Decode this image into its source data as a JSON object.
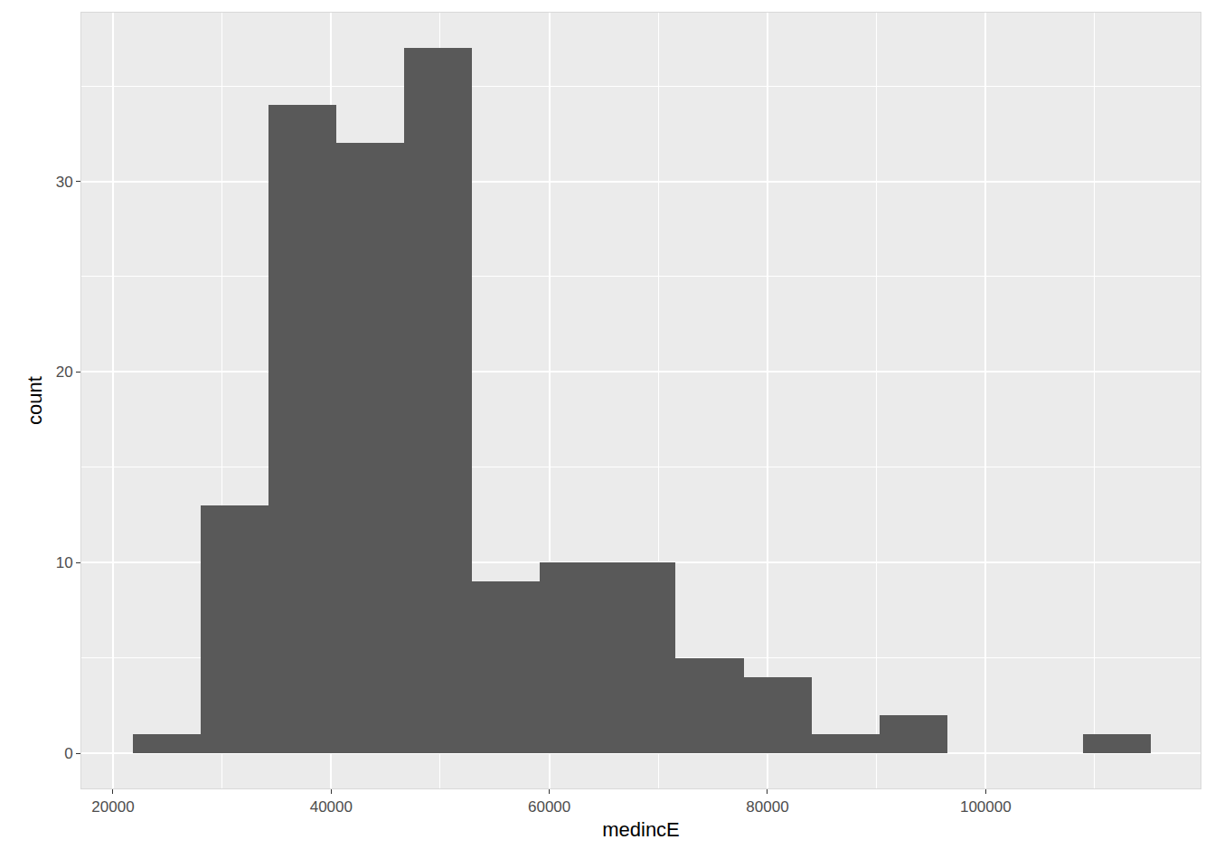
{
  "chart_data": {
    "type": "histogram",
    "x_label": "medincE",
    "y_label": "count",
    "bins": [
      21830,
      28050,
      34270,
      40490,
      46710,
      52930,
      59150,
      65370,
      71590,
      77810,
      84030,
      90250,
      96470,
      102690,
      108910,
      115130
    ],
    "counts": [
      1,
      13,
      34,
      32,
      37,
      9,
      10,
      10,
      5,
      4,
      1,
      2,
      0,
      0,
      1
    ],
    "color": "#595959",
    "xlim": [
      17100,
      119700
    ],
    "ylim": [
      -1.85,
      38.85
    ],
    "xticks": [
      20000,
      40000,
      60000,
      80000,
      100000
    ],
    "yticks": [
      0,
      10,
      20,
      30
    ],
    "grid": true
  }
}
